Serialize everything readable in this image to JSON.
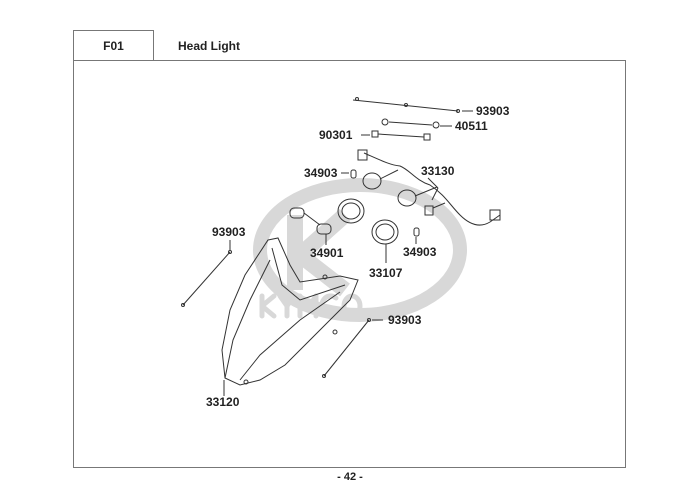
{
  "header": {
    "section_code": "F01",
    "title": "Head Light"
  },
  "watermark": {
    "brand": "KYMCO"
  },
  "callouts": [
    {
      "part_no": "93903"
    },
    {
      "part_no": "40511"
    },
    {
      "part_no": "90301"
    },
    {
      "part_no": "34903"
    },
    {
      "part_no": "33130"
    },
    {
      "part_no": "93903"
    },
    {
      "part_no": "34901"
    },
    {
      "part_no": "34903"
    },
    {
      "part_no": "33107"
    },
    {
      "part_no": "93903"
    },
    {
      "part_no": "33120"
    }
  ],
  "footer": {
    "page_number": "- 42 -"
  }
}
